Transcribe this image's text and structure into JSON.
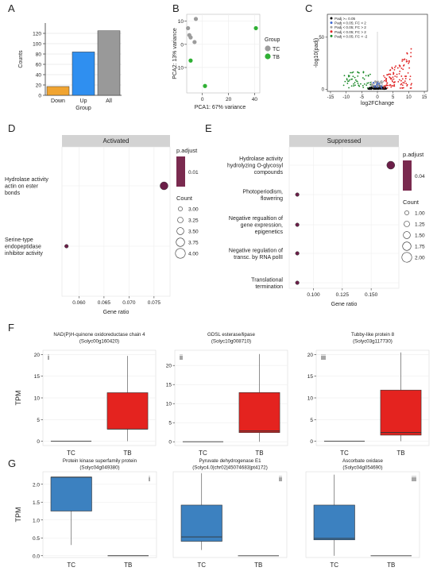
{
  "panels": [
    {
      "letter": "A"
    },
    {
      "letter": "B"
    },
    {
      "letter": "C"
    },
    {
      "letter": "D"
    },
    {
      "letter": "E"
    },
    {
      "letter": "F"
    },
    {
      "letter": "G"
    }
  ],
  "colors": {
    "down": "#f0a431",
    "up": "#2f8ff0",
    "all": "#999999",
    "tc": "#9c9c9c",
    "tb": "#2fb034",
    "strip": "#d3d3d3",
    "dot": "#6b1e48",
    "legend_fill": "#7a2a4f",
    "box_red": "#e4231f",
    "box_blue": "#3c81c0"
  },
  "chart_data": [
    {
      "panel": "A",
      "type": "bar",
      "categories": [
        "Down",
        "Up",
        "All"
      ],
      "values": [
        17,
        84,
        125
      ],
      "xlabel": "Group",
      "ylabel": "Counts",
      "ylim": [
        0,
        140
      ],
      "yticks": [
        0,
        20,
        40,
        60,
        80,
        100,
        120
      ],
      "grid": true
    },
    {
      "panel": "B",
      "type": "scatter",
      "xlabel": "PCA1: 67% variance",
      "ylabel": "PCA2: 13% variance",
      "xlim": [
        -12,
        44
      ],
      "ylim": [
        -21,
        13
      ],
      "xticks": [
        0,
        20,
        40
      ],
      "yticks": [
        -10,
        0,
        10
      ],
      "legend_title": "Group",
      "legend_position": "right",
      "series": [
        {
          "name": "TC",
          "points": [
            [
              -6,
              1
            ],
            [
              -5,
              11
            ],
            [
              -11,
              7
            ],
            [
              -10,
              4
            ],
            [
              -9,
              3
            ]
          ]
        },
        {
          "name": "TB",
          "points": [
            [
              -9,
              -7
            ],
            [
              2,
              -18
            ],
            [
              41,
              7
            ]
          ]
        }
      ]
    },
    {
      "panel": "C",
      "type": "scatter",
      "xlabel": "log2FChange",
      "ylabel": "-log10(padj)",
      "xlim": [
        -16,
        16
      ],
      "ylim": [
        -2,
        72
      ],
      "xticks": [
        -15,
        -10,
        -5,
        0,
        5,
        10,
        15
      ],
      "yticks": [
        0,
        50
      ],
      "legend_position": "top-left",
      "legend": [
        {
          "name": "Padj >= 0.05",
          "color": "#000000"
        },
        {
          "name": "Padj < 0.05; FC < 2",
          "color": "#3b66d1"
        },
        {
          "name": "Padj < 0.05; FC > 2",
          "color": "#a1a1a1"
        },
        {
          "name": "Padj < 0.05; FC > 2",
          "color": "#e02424"
        },
        {
          "name": "Padj < 0.05; FC < -2",
          "color": "#1c8a2a"
        }
      ]
    },
    {
      "panel": "D",
      "type": "scatter",
      "strip": "Activated",
      "xlabel": "Gene ratio",
      "xlim": [
        0.0566,
        0.0782
      ],
      "xticks": [
        "0.060",
        "0.065",
        "0.070",
        "0.075"
      ],
      "categories": [
        "Hydrolase activity actin on ester bonds",
        "Serine-type endopeptidase inhibitor activity"
      ],
      "category_lines": [
        [
          "Hydrolase activity",
          "actin on ester",
          "bonds"
        ],
        [
          "Serine-type",
          "endopeptidase",
          "inhibitor activity"
        ]
      ],
      "points": [
        {
          "x": 0.077,
          "count": 4
        },
        {
          "x": 0.0575,
          "count": 1
        }
      ],
      "color_title": "p.adjust",
      "color_tick": "0.01",
      "size_title": "Count",
      "size_ticks": [
        "3.00",
        "3.25",
        "3.50",
        "3.75",
        "4.00"
      ]
    },
    {
      "panel": "E",
      "type": "scatter",
      "strip": "Suppressed",
      "xlabel": "Gene ratio",
      "xlim": [
        0.079,
        0.174
      ],
      "xticks": [
        "0.100",
        "0.125",
        "0.150"
      ],
      "categories": [
        "Hydrolase activity hydrolyzing O-glycosyl compounds",
        "Photoperiodism, flowering",
        "Negative regualtion of gene expression, epigenetics",
        "Negative regulation of transc. by RNA polII",
        "Translational termination"
      ],
      "category_lines": [
        [
          "Hydrolase activity",
          "hydrolyzing O-glycosyl",
          "compounds"
        ],
        [
          "Photoperiodism,",
          "flowering"
        ],
        [
          "Negative regualtion of",
          "gene expression,",
          "epigenetics"
        ],
        [
          "Negative regulation of",
          "transc. by RNA polII"
        ],
        [
          "Translational",
          "termination"
        ]
      ],
      "points": [
        {
          "x": 0.167,
          "count": 2
        },
        {
          "x": 0.086,
          "count": 1
        },
        {
          "x": 0.086,
          "count": 1
        },
        {
          "x": 0.086,
          "count": 1
        },
        {
          "x": 0.086,
          "count": 1
        }
      ],
      "color_title": "p.adjust",
      "color_tick": "0.04",
      "size_title": "Count",
      "size_ticks": [
        "1.00",
        "1.25",
        "1.50",
        "1.75",
        "2.00"
      ]
    },
    {
      "panel": "F",
      "type": "box",
      "ylabel": "TPM",
      "categories": [
        "TC",
        "TB"
      ],
      "subplots": [
        {
          "title": [
            "NAD(P)H-quinone oxidoreductase chain 4",
            "(Solyc00g160420)"
          ],
          "numeral": "i",
          "ylim": [
            -1,
            21
          ],
          "yticks": [
            0,
            5,
            10,
            15,
            20
          ],
          "boxes": [
            {
              "min": 0,
              "q1": 0,
              "median": 0,
              "q3": 0,
              "max": 0
            },
            {
              "min": 0,
              "q1": 2.8,
              "median": 2.8,
              "q3": 11.2,
              "max": 19.7
            }
          ]
        },
        {
          "title": [
            "GDSL esterase/lipase",
            "(Solyc10g008710)"
          ],
          "numeral": "ii",
          "ylim": [
            -1,
            24
          ],
          "yticks": [
            0,
            5,
            10,
            15,
            20
          ],
          "boxes": [
            {
              "min": 0,
              "q1": 0,
              "median": 0,
              "q3": 0,
              "max": 0
            },
            {
              "min": 0,
              "q1": 2.4,
              "median": 2.8,
              "q3": 12.9,
              "max": 23
            }
          ]
        },
        {
          "title": [
            "Tubby-like protein 8",
            "(Solyc03g117730)"
          ],
          "numeral": "iii",
          "ylim": [
            -1,
            21
          ],
          "yticks": [
            0,
            5,
            10,
            15,
            20
          ],
          "boxes": [
            {
              "min": 0,
              "q1": 0,
              "median": 0,
              "q3": 0,
              "max": 0
            },
            {
              "min": 0,
              "q1": 1.4,
              "median": 2.0,
              "q3": 11.8,
              "max": 20.5
            }
          ]
        }
      ]
    },
    {
      "panel": "G",
      "type": "box",
      "ylabel": "TPM",
      "categories": [
        "TC",
        "TB"
      ],
      "subplots": [
        {
          "title": [
            "Protein kinase superfamily protein",
            "(Solyc04g049380)"
          ],
          "numeral": "i",
          "ylim": [
            -0.05,
            2.35
          ],
          "yticks": [
            "0.0",
            "0.5",
            "1.0",
            "1.5",
            "2.0"
          ],
          "boxes": [
            {
              "min": 0.3,
              "q1": 1.25,
              "median": 2.2,
              "q3": 2.2,
              "max": 2.2
            },
            {
              "min": 0,
              "q1": 0,
              "median": 0,
              "q3": 0,
              "max": 0
            }
          ]
        },
        {
          "title": [
            "Pyruvate dehydrogenase E1",
            "(Solyc4.0|chr02|45074683|pt4172)"
          ],
          "numeral": "ii",
          "ylim": [
            -0.06,
            2.9
          ],
          "yticks": [],
          "boxes": [
            {
              "min": 0.2,
              "q1": 0.5,
              "median": 0.65,
              "q3": 1.75,
              "max": 2.85
            },
            {
              "min": 0,
              "q1": 0,
              "median": 0,
              "q3": 0,
              "max": 0
            }
          ]
        },
        {
          "title": [
            "Ascorbate oxidase",
            "(Solyc04g054690)"
          ],
          "numeral": "iii",
          "ylim": [
            -0.06,
            2.9
          ],
          "yticks": [],
          "boxes": [
            {
              "min": 0,
              "q1": 0.55,
              "median": 0.6,
              "q3": 1.75,
              "max": 2.8
            },
            {
              "min": 0,
              "q1": 0,
              "median": 0,
              "q3": 0,
              "max": 0
            }
          ]
        }
      ]
    }
  ]
}
